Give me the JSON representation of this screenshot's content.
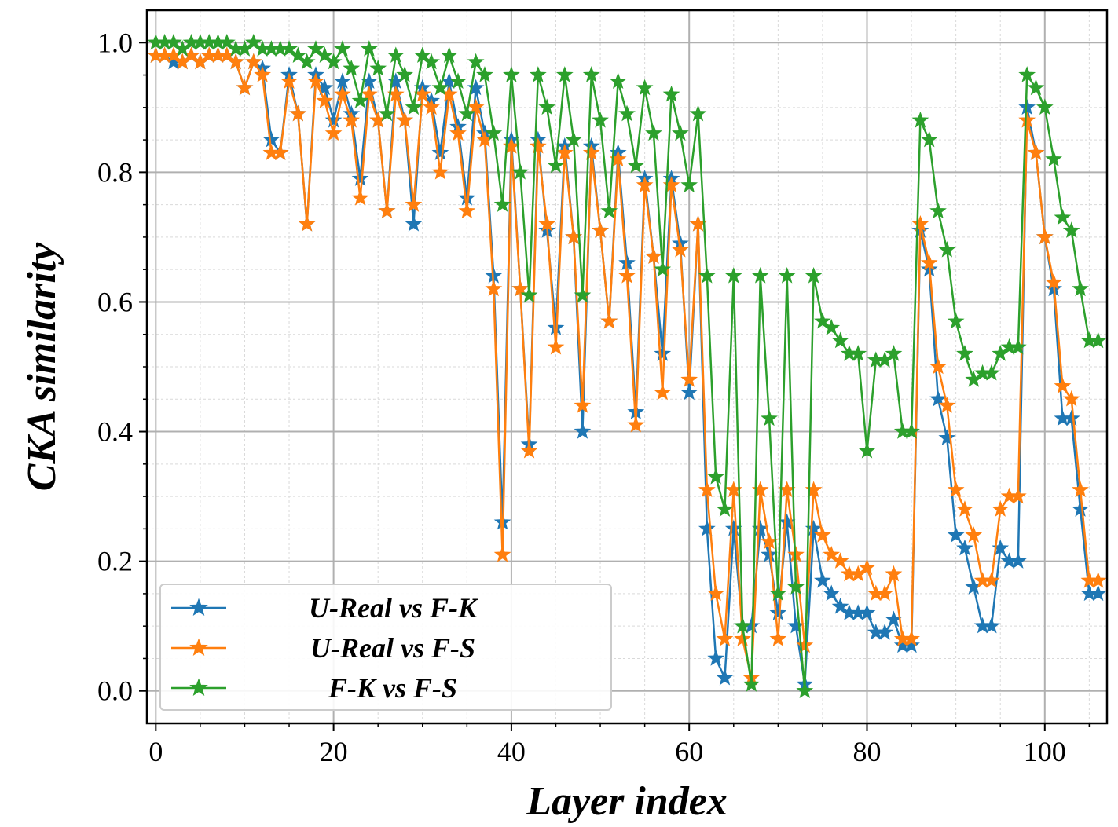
{
  "chart_data": {
    "type": "line",
    "title": "",
    "xlabel": "Layer index",
    "ylabel": "CKA similarity",
    "xlim": [
      -1,
      107
    ],
    "ylim": [
      -0.05,
      1.05
    ],
    "grid": true,
    "minor_grid": true,
    "legend_position": "lower-left",
    "x_ticks": [
      0,
      20,
      40,
      60,
      80,
      100
    ],
    "x_tick_labels": [
      "0",
      "20",
      "40",
      "60",
      "80",
      "100"
    ],
    "y_ticks": [
      0.0,
      0.2,
      0.4,
      0.6,
      0.8,
      1.0
    ],
    "y_tick_labels": [
      "0.0",
      "0.2",
      "0.4",
      "0.6",
      "0.8",
      "1.0"
    ],
    "marker": "star",
    "x": [
      0,
      1,
      2,
      3,
      4,
      5,
      6,
      7,
      8,
      9,
      10,
      11,
      12,
      13,
      14,
      15,
      16,
      17,
      18,
      19,
      20,
      21,
      22,
      23,
      24,
      25,
      26,
      27,
      28,
      29,
      30,
      31,
      32,
      33,
      34,
      35,
      36,
      37,
      38,
      39,
      40,
      41,
      42,
      43,
      44,
      45,
      46,
      47,
      48,
      49,
      50,
      51,
      52,
      53,
      54,
      55,
      56,
      57,
      58,
      59,
      60,
      61,
      62,
      63,
      64,
      65,
      66,
      67,
      68,
      69,
      70,
      71,
      72,
      73,
      74,
      75,
      76,
      77,
      78,
      79,
      80,
      81,
      82,
      83,
      84,
      85,
      86,
      87,
      88,
      89,
      90,
      91,
      92,
      93,
      94,
      95,
      96,
      97,
      98,
      99,
      100,
      101,
      102,
      103,
      104,
      105,
      106
    ],
    "series": [
      {
        "name": "U-Real vs F-K",
        "color": "#1f77b4",
        "values": [
          0.98,
          0.98,
          0.97,
          0.97,
          0.98,
          0.97,
          0.98,
          0.98,
          0.98,
          0.97,
          0.93,
          0.97,
          0.96,
          0.85,
          0.83,
          0.95,
          0.89,
          0.72,
          0.95,
          0.93,
          0.88,
          0.94,
          0.89,
          0.79,
          0.94,
          0.88,
          0.74,
          0.94,
          0.88,
          0.72,
          0.93,
          0.91,
          0.83,
          0.94,
          0.87,
          0.76,
          0.93,
          0.86,
          0.64,
          0.26,
          0.85,
          0.62,
          0.38,
          0.85,
          0.71,
          0.56,
          0.84,
          0.7,
          0.4,
          0.84,
          0.71,
          0.57,
          0.83,
          0.66,
          0.43,
          0.79,
          0.67,
          0.52,
          0.79,
          0.69,
          0.46,
          0.72,
          0.25,
          0.05,
          0.02,
          0.25,
          0.1,
          0.1,
          0.25,
          0.21,
          0.12,
          0.26,
          0.1,
          0.01,
          0.25,
          0.17,
          0.15,
          0.13,
          0.12,
          0.12,
          0.12,
          0.09,
          0.09,
          0.11,
          0.07,
          0.07,
          0.71,
          0.65,
          0.45,
          0.39,
          0.24,
          0.22,
          0.16,
          0.1,
          0.1,
          0.22,
          0.2,
          0.2,
          0.9,
          0.83,
          0.7,
          0.62,
          0.42,
          0.42,
          0.28,
          0.15,
          0.15
        ]
      },
      {
        "name": "U-Real vs F-S",
        "color": "#ff7f0e",
        "values": [
          0.98,
          0.98,
          0.98,
          0.97,
          0.98,
          0.97,
          0.98,
          0.98,
          0.98,
          0.97,
          0.93,
          0.97,
          0.95,
          0.83,
          0.83,
          0.94,
          0.89,
          0.72,
          0.94,
          0.91,
          0.86,
          0.92,
          0.88,
          0.76,
          0.92,
          0.88,
          0.74,
          0.92,
          0.88,
          0.75,
          0.92,
          0.9,
          0.8,
          0.92,
          0.86,
          0.74,
          0.9,
          0.85,
          0.62,
          0.21,
          0.84,
          0.62,
          0.37,
          0.84,
          0.72,
          0.53,
          0.83,
          0.7,
          0.44,
          0.83,
          0.71,
          0.57,
          0.82,
          0.64,
          0.41,
          0.78,
          0.67,
          0.46,
          0.78,
          0.68,
          0.48,
          0.72,
          0.31,
          0.15,
          0.08,
          0.31,
          0.08,
          0.02,
          0.31,
          0.23,
          0.08,
          0.31,
          0.21,
          0.07,
          0.31,
          0.24,
          0.21,
          0.2,
          0.18,
          0.18,
          0.19,
          0.15,
          0.15,
          0.18,
          0.08,
          0.08,
          0.72,
          0.66,
          0.5,
          0.44,
          0.31,
          0.28,
          0.24,
          0.17,
          0.17,
          0.28,
          0.3,
          0.3,
          0.88,
          0.83,
          0.7,
          0.63,
          0.47,
          0.45,
          0.31,
          0.17,
          0.17
        ]
      },
      {
        "name": "F-K vs F-S",
        "color": "#2ca02c",
        "values": [
          1.0,
          1.0,
          1.0,
          0.99,
          1.0,
          1.0,
          1.0,
          1.0,
          1.0,
          0.99,
          0.99,
          1.0,
          0.99,
          0.99,
          0.99,
          0.99,
          0.98,
          0.97,
          0.99,
          0.98,
          0.97,
          0.99,
          0.96,
          0.91,
          0.99,
          0.96,
          0.89,
          0.98,
          0.95,
          0.9,
          0.98,
          0.97,
          0.93,
          0.98,
          0.94,
          0.89,
          0.97,
          0.95,
          0.86,
          0.75,
          0.95,
          0.8,
          0.61,
          0.95,
          0.9,
          0.81,
          0.95,
          0.85,
          0.61,
          0.95,
          0.88,
          0.74,
          0.94,
          0.89,
          0.81,
          0.93,
          0.86,
          0.65,
          0.92,
          0.86,
          0.78,
          0.89,
          0.64,
          0.33,
          0.28,
          0.64,
          0.1,
          0.01,
          0.64,
          0.42,
          0.15,
          0.64,
          0.16,
          0.0,
          0.64,
          0.57,
          0.56,
          0.54,
          0.52,
          0.52,
          0.37,
          0.51,
          0.51,
          0.52,
          0.4,
          0.4,
          0.88,
          0.85,
          0.74,
          0.68,
          0.57,
          0.52,
          0.48,
          0.49,
          0.49,
          0.52,
          0.53,
          0.53,
          0.95,
          0.93,
          0.9,
          0.82,
          0.73,
          0.71,
          0.62,
          0.54,
          0.54
        ]
      }
    ]
  }
}
